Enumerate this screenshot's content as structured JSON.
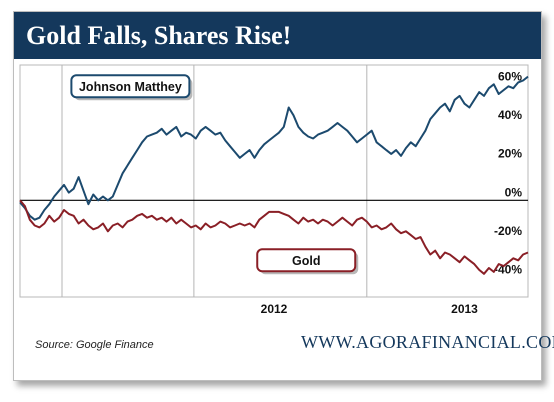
{
  "header": {
    "title": "Gold Falls, Shares Rise!"
  },
  "footer": {
    "source": "Source: Google Finance",
    "website": "WWW.AGORAFINANCIAL.COM"
  },
  "colors": {
    "header_bg": "#14385c",
    "johnson_line": "#1c4a6e",
    "gold_line": "#8a1f26",
    "zero_line": "#000000"
  },
  "chart_data": {
    "type": "line",
    "title": "Gold Falls, Shares Rise!",
    "x_unit": "months since start of 2011",
    "xlim": [
      9.4,
      14.6
    ],
    "x_ticks": [
      {
        "value": 12,
        "label": "2012"
      },
      {
        "value": 13.95,
        "label": "2013"
      }
    ],
    "ylabel": "",
    "ylim": [
      -50,
      70
    ],
    "y_ticks": [
      {
        "value": 60,
        "label": "60%"
      },
      {
        "value": 40,
        "label": "40%"
      },
      {
        "value": 20,
        "label": "20%"
      },
      {
        "value": 0,
        "label": "0%"
      },
      {
        "value": -20,
        "label": "-20%"
      },
      {
        "value": -40,
        "label": "-40%"
      }
    ],
    "x_gridlines": [
      9.83,
      11.18,
      12.95
    ],
    "series": [
      {
        "name": "Johnson Matthey",
        "x": [
          9.4,
          9.45,
          9.5,
          9.55,
          9.6,
          9.65,
          9.7,
          9.75,
          9.8,
          9.85,
          9.9,
          9.95,
          10.0,
          10.05,
          10.1,
          10.15,
          10.2,
          10.25,
          10.3,
          10.35,
          10.4,
          10.45,
          10.5,
          10.55,
          10.6,
          10.65,
          10.7,
          10.75,
          10.8,
          10.85,
          10.9,
          10.95,
          11.0,
          11.05,
          11.1,
          11.15,
          11.2,
          11.25,
          11.3,
          11.35,
          11.4,
          11.45,
          11.5,
          11.55,
          11.6,
          11.65,
          11.7,
          11.75,
          11.8,
          11.85,
          11.9,
          11.95,
          12.0,
          12.05,
          12.1,
          12.15,
          12.2,
          12.25,
          12.3,
          12.35,
          12.4,
          12.45,
          12.5,
          12.55,
          12.6,
          12.65,
          12.7,
          12.75,
          12.8,
          12.85,
          12.9,
          12.95,
          13.0,
          13.05,
          13.1,
          13.15,
          13.2,
          13.25,
          13.3,
          13.35,
          13.4,
          13.45,
          13.5,
          13.55,
          13.6,
          13.65,
          13.7,
          13.75,
          13.8,
          13.85,
          13.9,
          13.95,
          14.0,
          14.05,
          14.1,
          14.15,
          14.2,
          14.25,
          14.3,
          14.35,
          14.4,
          14.45,
          14.5,
          14.55,
          14.6
        ],
        "values": [
          -1,
          -4,
          -8,
          -10,
          -9,
          -5,
          -2,
          2,
          5,
          8,
          4,
          6,
          12,
          5,
          -2,
          3,
          0,
          2,
          0,
          2,
          8,
          14,
          18,
          22,
          26,
          30,
          33,
          34,
          35,
          37,
          34,
          36,
          38,
          33,
          35,
          34,
          32,
          36,
          38,
          36,
          34,
          35,
          31,
          28,
          25,
          22,
          24,
          26,
          22,
          26,
          29,
          31,
          33,
          35,
          38,
          48,
          44,
          38,
          35,
          33,
          32,
          34,
          35,
          36,
          38,
          40,
          38,
          36,
          33,
          30,
          32,
          34,
          36,
          30,
          28,
          26,
          24,
          26,
          23,
          27,
          30,
          28,
          32,
          36,
          42,
          45,
          48,
          50,
          46,
          52,
          54,
          50,
          48,
          52,
          56,
          54,
          58,
          60,
          55,
          57,
          59,
          58,
          61,
          62,
          64
        ],
        "color": "#1c4a6e"
      },
      {
        "name": "Gold",
        "x": [
          9.4,
          9.45,
          9.5,
          9.55,
          9.6,
          9.65,
          9.7,
          9.75,
          9.8,
          9.85,
          9.9,
          9.95,
          10.0,
          10.05,
          10.1,
          10.15,
          10.2,
          10.25,
          10.3,
          10.35,
          10.4,
          10.45,
          10.5,
          10.55,
          10.6,
          10.65,
          10.7,
          10.75,
          10.8,
          10.85,
          10.9,
          10.95,
          11.0,
          11.05,
          11.1,
          11.15,
          11.2,
          11.25,
          11.3,
          11.35,
          11.4,
          11.45,
          11.5,
          11.55,
          11.6,
          11.65,
          11.7,
          11.75,
          11.8,
          11.85,
          11.9,
          11.95,
          12.0,
          12.05,
          12.1,
          12.15,
          12.2,
          12.25,
          12.3,
          12.35,
          12.4,
          12.45,
          12.5,
          12.55,
          12.6,
          12.65,
          12.7,
          12.75,
          12.8,
          12.85,
          12.9,
          12.95,
          13.0,
          13.05,
          13.1,
          13.15,
          13.2,
          13.25,
          13.3,
          13.35,
          13.4,
          13.45,
          13.5,
          13.55,
          13.6,
          13.65,
          13.7,
          13.75,
          13.8,
          13.85,
          13.9,
          13.95,
          14.0,
          14.05,
          14.1,
          14.15,
          14.2,
          14.25,
          14.3,
          14.35,
          14.4,
          14.45,
          14.5,
          14.55,
          14.6
        ],
        "values": [
          0,
          -3,
          -10,
          -13,
          -14,
          -12,
          -8,
          -11,
          -9,
          -5,
          -7,
          -8,
          -12,
          -10,
          -13,
          -15,
          -14,
          -12,
          -16,
          -13,
          -12,
          -14,
          -11,
          -10,
          -8,
          -7,
          -9,
          -8,
          -10,
          -9,
          -11,
          -9,
          -12,
          -10,
          -12,
          -14,
          -13,
          -15,
          -12,
          -14,
          -13,
          -11,
          -12,
          -14,
          -13,
          -12,
          -13,
          -12,
          -14,
          -10,
          -8,
          -6,
          -6,
          -6,
          -7,
          -8,
          -10,
          -12,
          -9,
          -11,
          -10,
          -12,
          -10,
          -11,
          -13,
          -11,
          -9,
          -11,
          -13,
          -10,
          -9,
          -11,
          -14,
          -13,
          -15,
          -14,
          -12,
          -15,
          -17,
          -16,
          -18,
          -20,
          -19,
          -24,
          -28,
          -26,
          -30,
          -27,
          -28,
          -30,
          -32,
          -29,
          -31,
          -33,
          -36,
          -38,
          -35,
          -37,
          -33,
          -34,
          -32,
          -30,
          -31,
          -28,
          -27
        ],
        "color": "#8a1f26"
      }
    ],
    "annotations": [
      {
        "text": "Johnson Matthey",
        "x": 10.53,
        "y": 59,
        "color": "#1c4a6e"
      },
      {
        "text": "Gold",
        "x": 12.33,
        "y": -31,
        "color": "#8a1f26"
      }
    ],
    "grid": "vertical",
    "legend": "none"
  }
}
